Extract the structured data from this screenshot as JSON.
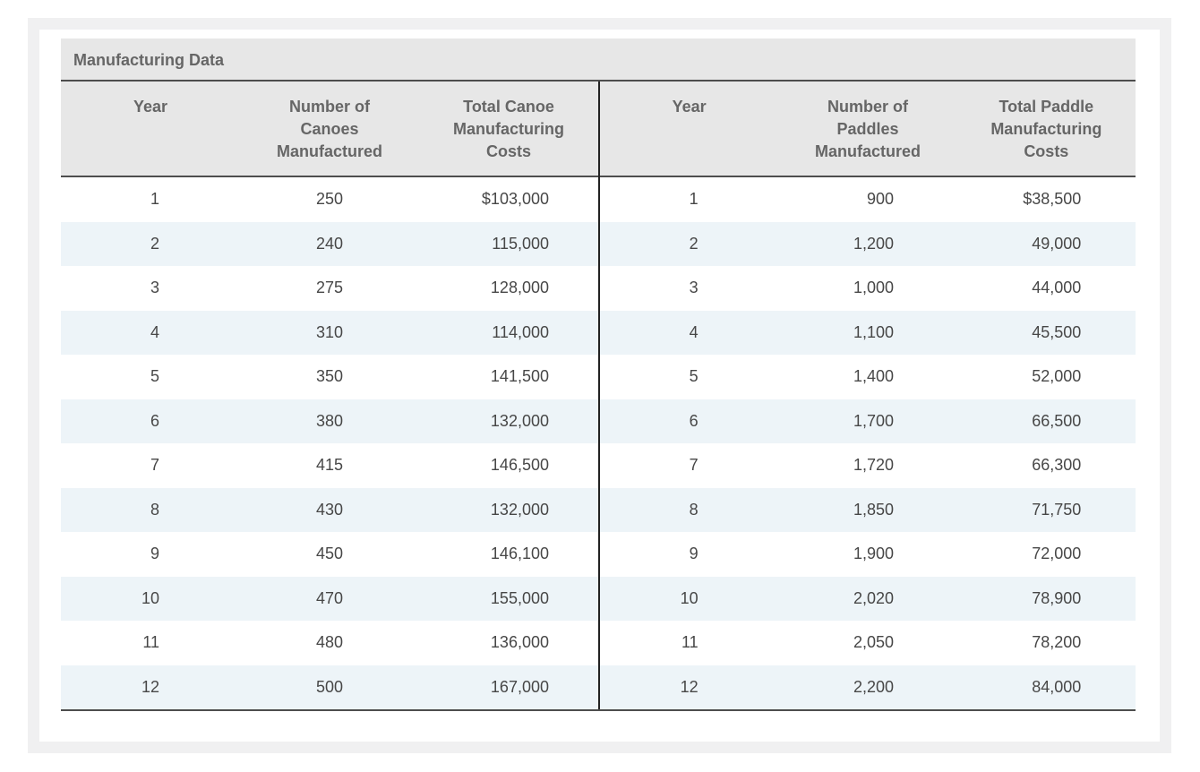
{
  "page": {
    "title": "Manufacturing Data"
  },
  "colors": {
    "stripe_blue": "#edf4f8",
    "header_gray": "#e7e7e7",
    "panel_gray": "#f0f0f1",
    "rule_dark": "#4d4d4d",
    "header_text": "#666666",
    "data_text": "#474747"
  },
  "chart_data": {
    "type": "table",
    "title": "Manufacturing Data",
    "tables": [
      {
        "name": "canoes",
        "columns": [
          "Year",
          "Number of Canoes Manufactured",
          "Total Canoe Manufacturing Costs"
        ],
        "column_lines": [
          [
            "Year"
          ],
          [
            "Number of",
            "Canoes",
            "Manufactured"
          ],
          [
            "Total Canoe",
            "Manufacturing",
            "Costs"
          ]
        ],
        "rows": [
          [
            "1",
            "250",
            "$103,000"
          ],
          [
            "2",
            "240",
            "115,000"
          ],
          [
            "3",
            "275",
            "128,000"
          ],
          [
            "4",
            "310",
            "114,000"
          ],
          [
            "5",
            "350",
            "141,500"
          ],
          [
            "6",
            "380",
            "132,000"
          ],
          [
            "7",
            "415",
            "146,500"
          ],
          [
            "8",
            "430",
            "132,000"
          ],
          [
            "9",
            "450",
            "146,100"
          ],
          [
            "10",
            "470",
            "155,000"
          ],
          [
            "11",
            "480",
            "136,000"
          ],
          [
            "12",
            "500",
            "167,000"
          ]
        ],
        "years": [
          1,
          2,
          3,
          4,
          5,
          6,
          7,
          8,
          9,
          10,
          11,
          12
        ],
        "number_manufactured": [
          250,
          240,
          275,
          310,
          350,
          380,
          415,
          430,
          450,
          470,
          480,
          500
        ],
        "total_costs_usd": [
          103000,
          115000,
          128000,
          114000,
          141500,
          132000,
          146500,
          132000,
          146100,
          155000,
          136000,
          167000
        ]
      },
      {
        "name": "paddles",
        "columns": [
          "Year",
          "Number of Paddles Manufactured",
          "Total Paddle Manufacturing Costs"
        ],
        "column_lines": [
          [
            "Year"
          ],
          [
            "Number of",
            "Paddles",
            "Manufactured"
          ],
          [
            "Total Paddle",
            "Manufacturing",
            "Costs"
          ]
        ],
        "rows": [
          [
            "1",
            "900",
            "$38,500"
          ],
          [
            "2",
            "1,200",
            "49,000"
          ],
          [
            "3",
            "1,000",
            "44,000"
          ],
          [
            "4",
            "1,100",
            "45,500"
          ],
          [
            "5",
            "1,400",
            "52,000"
          ],
          [
            "6",
            "1,700",
            "66,500"
          ],
          [
            "7",
            "1,720",
            "66,300"
          ],
          [
            "8",
            "1,850",
            "71,750"
          ],
          [
            "9",
            "1,900",
            "72,000"
          ],
          [
            "10",
            "2,020",
            "78,900"
          ],
          [
            "11",
            "2,050",
            "78,200"
          ],
          [
            "12",
            "2,200",
            "84,000"
          ]
        ],
        "years": [
          1,
          2,
          3,
          4,
          5,
          6,
          7,
          8,
          9,
          10,
          11,
          12
        ],
        "number_manufactured": [
          900,
          1200,
          1000,
          1100,
          1400,
          1700,
          1720,
          1850,
          1900,
          2020,
          2050,
          2200
        ],
        "total_costs_usd": [
          38500,
          49000,
          44000,
          45500,
          52000,
          66500,
          66300,
          71750,
          72000,
          78900,
          78200,
          84000
        ]
      }
    ]
  }
}
